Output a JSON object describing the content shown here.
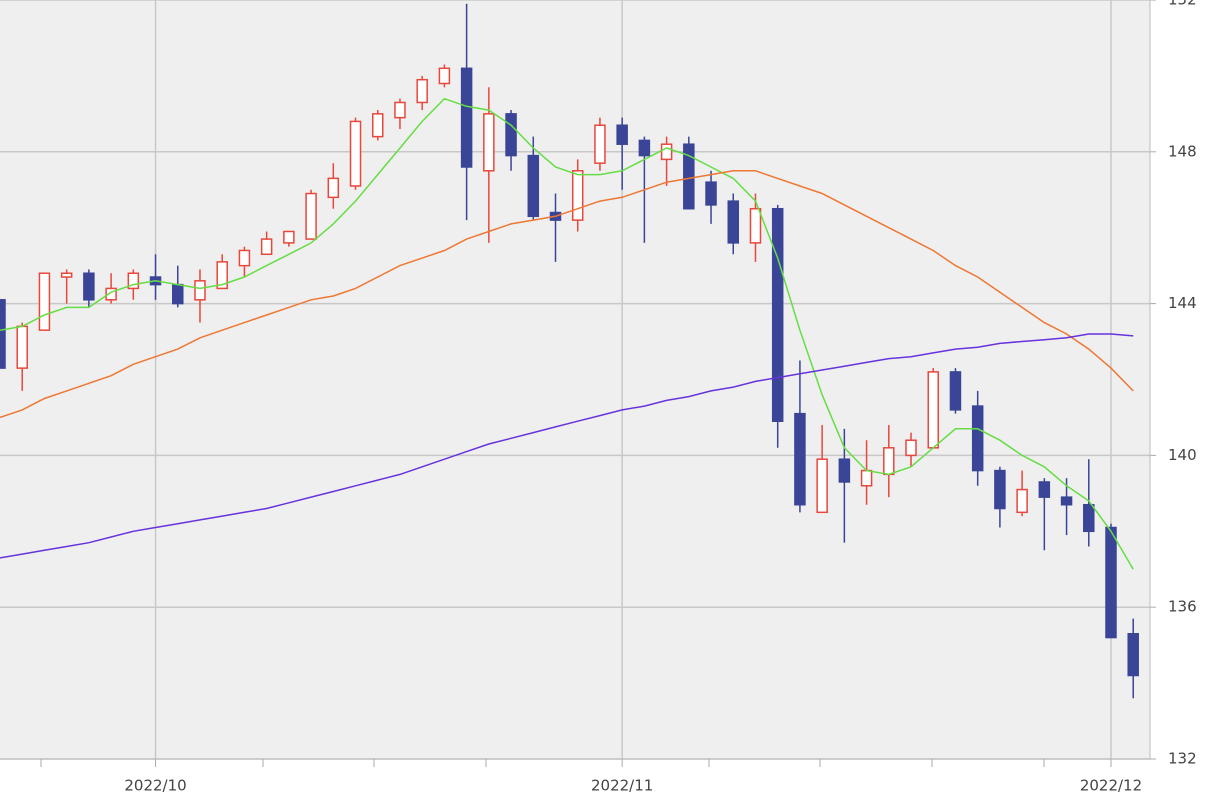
{
  "chart_data": {
    "type": "candlestick",
    "categories": [
      null,
      null,
      null,
      null,
      null,
      null,
      null,
      "2022/10",
      null,
      null,
      null,
      null,
      null,
      null,
      null,
      null,
      null,
      null,
      null,
      null,
      null,
      null,
      null,
      null,
      null,
      null,
      null,
      null,
      "2022/11",
      null,
      null,
      null,
      null,
      null,
      null,
      null,
      null,
      null,
      null,
      null,
      null,
      null,
      null,
      null,
      null,
      null,
      null,
      null,
      null,
      null,
      "2022/12",
      null
    ],
    "open": [
      144.1,
      142.3,
      143.3,
      144.7,
      144.8,
      144.1,
      144.4,
      144.7,
      144.5,
      144.1,
      144.4,
      145.0,
      145.3,
      145.6,
      145.7,
      146.8,
      147.1,
      148.4,
      148.9,
      149.3,
      149.8,
      150.2,
      147.5,
      149.0,
      147.9,
      146.4,
      146.2,
      147.7,
      148.7,
      148.3,
      147.8,
      148.2,
      147.2,
      146.7,
      145.6,
      146.5,
      141.1,
      138.5,
      139.9,
      139.2,
      139.5,
      140.0,
      140.2,
      142.2,
      141.3,
      139.6,
      138.5,
      139.3,
      138.9,
      138.7,
      138.1,
      135.3
    ],
    "high": [
      144.1,
      143.5,
      144.8,
      144.9,
      144.9,
      144.8,
      144.9,
      145.3,
      145.0,
      144.9,
      145.3,
      145.5,
      145.9,
      145.9,
      147.0,
      147.7,
      148.9,
      149.1,
      149.4,
      150.0,
      150.3,
      151.9,
      149.7,
      149.1,
      148.4,
      146.9,
      147.8,
      148.9,
      148.9,
      148.4,
      148.4,
      148.4,
      147.5,
      146.9,
      146.9,
      146.6,
      142.5,
      140.8,
      140.7,
      140.4,
      140.8,
      140.6,
      142.3,
      142.3,
      141.7,
      139.7,
      139.6,
      139.4,
      139.4,
      139.9,
      138.2,
      135.7
    ],
    "low": [
      142.3,
      141.7,
      143.3,
      144.0,
      143.9,
      144.0,
      144.1,
      144.1,
      143.9,
      143.5,
      144.4,
      144.7,
      145.3,
      145.5,
      145.7,
      146.5,
      147.0,
      148.3,
      148.6,
      149.1,
      149.7,
      146.2,
      145.6,
      147.5,
      146.2,
      145.1,
      145.9,
      147.5,
      147.0,
      145.6,
      147.1,
      146.5,
      146.1,
      145.3,
      145.1,
      140.2,
      138.5,
      138.5,
      137.7,
      138.7,
      138.9,
      139.7,
      140.2,
      141.1,
      139.2,
      138.1,
      138.4,
      137.5,
      137.9,
      137.6,
      135.2,
      133.6
    ],
    "close": [
      142.3,
      143.4,
      144.8,
      144.8,
      144.1,
      144.4,
      144.8,
      144.5,
      144.0,
      144.6,
      145.1,
      145.4,
      145.7,
      145.9,
      146.9,
      147.3,
      148.8,
      149.0,
      149.3,
      149.9,
      150.2,
      147.6,
      149.0,
      147.9,
      146.3,
      146.2,
      147.5,
      148.7,
      148.2,
      147.9,
      148.2,
      146.5,
      146.6,
      145.6,
      146.5,
      140.9,
      138.7,
      139.9,
      139.3,
      139.6,
      140.2,
      140.4,
      142.2,
      141.2,
      139.6,
      138.6,
      139.1,
      138.9,
      138.7,
      138.0,
      135.2,
      134.2
    ],
    "up_color": "#e8473c",
    "down_color": "#3a4597",
    "moving_averages": [
      {
        "color": "#66dd44",
        "values": [
          143.3,
          143.4,
          143.7,
          143.9,
          143.9,
          144.3,
          144.5,
          144.6,
          144.5,
          144.4,
          144.5,
          144.7,
          145.0,
          145.3,
          145.6,
          146.1,
          146.7,
          147.4,
          148.1,
          148.8,
          149.4,
          149.2,
          149.1,
          148.7,
          148.1,
          147.6,
          147.4,
          147.4,
          147.5,
          147.8,
          148.1,
          147.9,
          147.6,
          147.3,
          146.7,
          145.2,
          143.3,
          141.6,
          140.2,
          139.6,
          139.5,
          139.7,
          140.2,
          140.7,
          140.7,
          140.4,
          140.0,
          139.7,
          139.2,
          138.8,
          138.0,
          137.0
        ]
      },
      {
        "color": "#ee7733",
        "values": [
          141.0,
          141.2,
          141.5,
          141.7,
          141.9,
          142.1,
          142.4,
          142.6,
          142.8,
          143.1,
          143.3,
          143.5,
          143.7,
          143.9,
          144.1,
          144.2,
          144.4,
          144.7,
          145.0,
          145.2,
          145.4,
          145.7,
          145.9,
          146.1,
          146.2,
          146.3,
          146.5,
          146.7,
          146.8,
          147.0,
          147.2,
          147.3,
          147.4,
          147.5,
          147.5,
          147.3,
          147.1,
          146.9,
          146.6,
          146.3,
          146.0,
          145.7,
          145.4,
          145.0,
          144.7,
          144.3,
          143.9,
          143.5,
          143.2,
          142.8,
          142.3,
          141.7
        ]
      },
      {
        "color": "#6633dd",
        "values": [
          137.3,
          137.4,
          137.5,
          137.6,
          137.7,
          137.85,
          138.0,
          138.1,
          138.2,
          138.3,
          138.4,
          138.5,
          138.6,
          138.75,
          138.9,
          139.05,
          139.2,
          139.35,
          139.5,
          139.7,
          139.9,
          140.1,
          140.3,
          140.45,
          140.6,
          140.75,
          140.9,
          141.05,
          141.2,
          141.3,
          141.45,
          141.55,
          141.7,
          141.8,
          141.95,
          142.05,
          142.15,
          142.25,
          142.35,
          142.45,
          142.55,
          142.6,
          142.7,
          142.8,
          142.85,
          142.95,
          143.0,
          143.05,
          143.1,
          143.2,
          143.2,
          143.15
        ]
      }
    ],
    "ylim": [
      132,
      152
    ],
    "yticks": [
      132,
      136,
      140,
      144,
      148,
      152
    ],
    "grid": true
  }
}
